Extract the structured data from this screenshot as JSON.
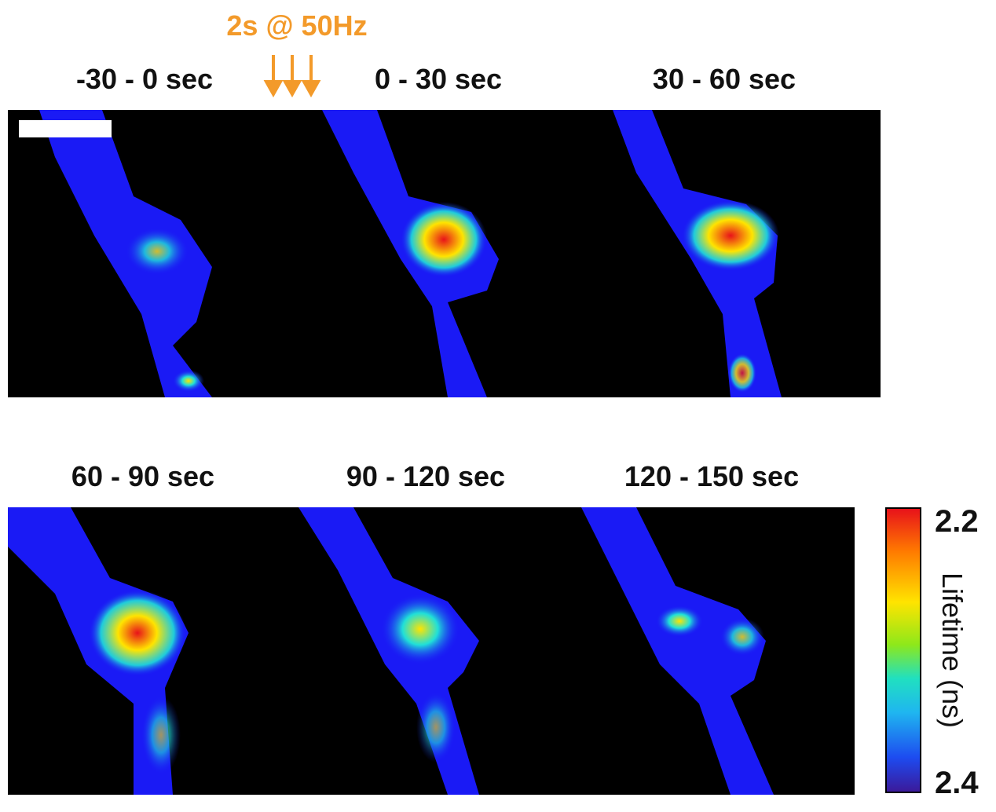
{
  "stimulus": {
    "text": "2s @ 50Hz",
    "color": "#f39a2a"
  },
  "panels": {
    "p1": "-30 - 0 sec",
    "p2": "0 - 30 sec",
    "p3": "30 - 60 sec",
    "p4": "60 - 90 sec",
    "p5": "90 - 120 sec",
    "p6": "120 - 150 sec"
  },
  "colorbar": {
    "title": "Lifetime (ns)",
    "top_value": "2.2",
    "bottom_value": "2.4",
    "colormap": [
      "#e8121a",
      "#ff7a00",
      "#ffe400",
      "#8ee81a",
      "#20e0c0",
      "#1fb6f0",
      "#1d4bf0",
      "#3b1a9a"
    ]
  },
  "colors": {
    "background": "#000000",
    "cell": "#1a1af5"
  }
}
